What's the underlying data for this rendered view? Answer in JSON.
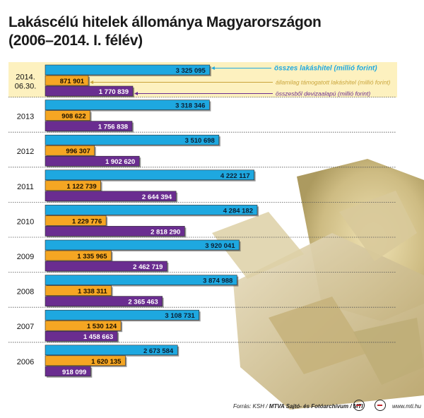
{
  "title": {
    "line1": "Lakáscélú hitelek állománya Magyarországon",
    "line2": "(2006–2014. I. félév)"
  },
  "chart_data": {
    "type": "bar",
    "orientation": "horizontal",
    "categories": [
      [
        "2014.",
        "06.30."
      ],
      [
        "2013"
      ],
      [
        "2012"
      ],
      [
        "2011"
      ],
      [
        "2010"
      ],
      [
        "2009"
      ],
      [
        "2008"
      ],
      [
        "2007"
      ],
      [
        "2006"
      ]
    ],
    "value_labels": {
      "total": [
        "3 325 095",
        "3 318 346",
        "3 510 698",
        "4 222 117",
        "4 284 182",
        "3 920 041",
        "3 874 988",
        "3 108 731",
        "2 673 584"
      ],
      "subsidized": [
        "871 901",
        "908 622",
        "996 307",
        "1 122 739",
        "1 229 776",
        "1 335 965",
        "1 338 311",
        "1 530 124",
        "1 620 135"
      ],
      "fx": [
        "1 770 839",
        "1 756 838",
        "1 902 620",
        "2 644 394",
        "2 818 290",
        "2 462 719",
        "2 365 463",
        "1 458 663",
        "918 099"
      ]
    },
    "series": [
      {
        "name": "összes lakáshitel (millió forint)",
        "key": "total",
        "color": "#1ea8e0",
        "values": [
          3325095,
          3318346,
          3510698,
          4222117,
          4284182,
          3920041,
          3874988,
          3108731,
          2673584
        ]
      },
      {
        "name": "államilag támogatott lakáshitel (millió forint)",
        "key": "subsidized",
        "color": "#f5a623",
        "values": [
          871901,
          908622,
          996307,
          1122739,
          1229776,
          1335965,
          1338311,
          1530124,
          1620135
        ]
      },
      {
        "name": "összesből devizaalapú (millió forint)",
        "key": "fx",
        "color": "#6a2d90",
        "values": [
          1770839,
          1756838,
          1902620,
          2644394,
          2818290,
          2462719,
          2365463,
          1458663,
          918099
        ]
      }
    ],
    "legend": {
      "placement": "top-right",
      "labels": [
        "összes lakáshitel (millió forint)",
        "államilag támogatott lakáshitel (millió forint)",
        "összesből devizaalapú (millió forint)"
      ],
      "colors": [
        "#1ea8e0",
        "#c9a43a",
        "#6a2d90"
      ]
    },
    "highlight_color": "#fdf1bf",
    "grid": false
  },
  "footer": {
    "source_prefix": "Forrás: KSH / ",
    "source_bold": "MTVA Sajtó- és Fotóarchívum / MTI",
    "website": "www.mti.hu"
  }
}
